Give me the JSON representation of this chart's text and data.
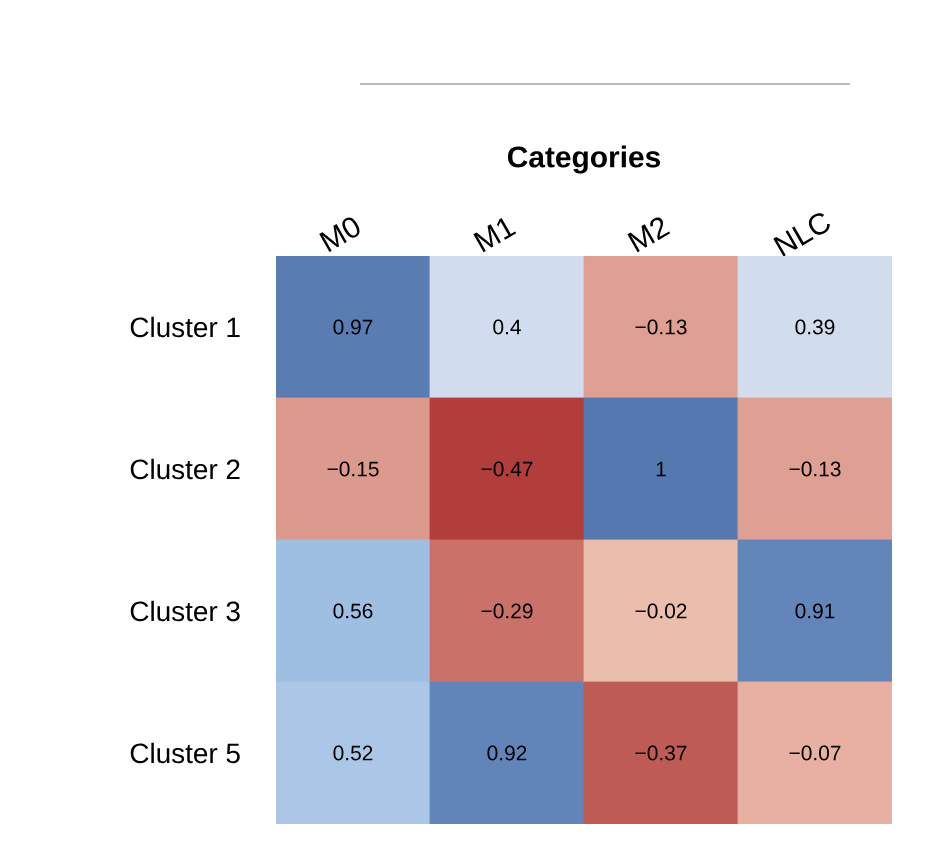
{
  "chart_data": {
    "type": "heatmap",
    "xlabel": "Categories",
    "categories": [
      "M0",
      "M1",
      "M2",
      "NLC"
    ],
    "y_categories": [
      "Cluster 1",
      "Cluster 2",
      "Cluster 3",
      "Cluster 5"
    ],
    "cells": [
      [
        0.97,
        0.4,
        -0.13,
        0.39
      ],
      [
        -0.15,
        -0.47,
        1,
        -0.13
      ],
      [
        0.56,
        -0.29,
        -0.02,
        0.91
      ],
      [
        0.52,
        0.92,
        -0.37,
        -0.07
      ]
    ],
    "cell_labels": [
      [
        "0.97",
        "0.4",
        "−0.13",
        "0.39"
      ],
      [
        "−0.15",
        "−0.47",
        "1",
        "−0.13"
      ],
      [
        "0.56",
        "−0.29",
        "−0.02",
        "0.91"
      ],
      [
        "0.52",
        "0.92",
        "−0.37",
        "−0.07"
      ]
    ]
  }
}
